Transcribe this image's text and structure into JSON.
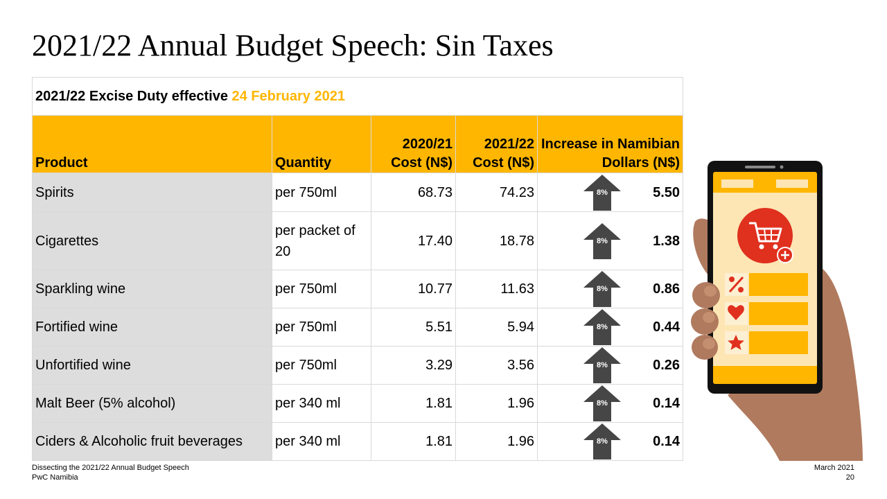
{
  "slide": {
    "title": "2021/22 Annual Budget Speech: Sin Taxes"
  },
  "table": {
    "caption_prefix": "2021/22 Excise Duty effective ",
    "caption_date": "24 February 2021",
    "headers": {
      "product": "Product",
      "quantity": "Quantity",
      "cost_2020_line1": "2020/21",
      "cost_2020_line2": "Cost (N$)",
      "cost_2021_line1": "2021/22",
      "cost_2021_line2": "Cost (N$)",
      "increase_line1": "Increase in Namibian",
      "increase_line2": "Dollars (N$)"
    },
    "rows": [
      {
        "product": "Spirits",
        "quantity": "per 750ml",
        "cost_2020": "68.73",
        "cost_2021": "74.23",
        "pct": "8%",
        "increase": "5.50"
      },
      {
        "product": "Cigarettes",
        "quantity": "per packet of 20",
        "cost_2020": "17.40",
        "cost_2021": "18.78",
        "pct": "8%",
        "increase": "1.38"
      },
      {
        "product": "Sparkling wine",
        "quantity": "per 750ml",
        "cost_2020": "10.77",
        "cost_2021": "11.63",
        "pct": "8%",
        "increase": "0.86"
      },
      {
        "product": "Fortified wine",
        "quantity": "per 750ml",
        "cost_2020": "5.51",
        "cost_2021": "5.94",
        "pct": "8%",
        "increase": "0.44"
      },
      {
        "product": "Unfortified wine",
        "quantity": "per 750ml",
        "cost_2020": "3.29",
        "cost_2021": "3.56",
        "pct": "8%",
        "increase": "0.26"
      },
      {
        "product": "Malt Beer (5% alcohol)",
        "quantity": "per 340 ml",
        "cost_2020": "1.81",
        "cost_2021": "1.96",
        "pct": "8%",
        "increase": "0.14"
      },
      {
        "product": "Ciders & Alcoholic fruit beverages",
        "quantity": "per 340 ml",
        "cost_2020": "1.81",
        "cost_2021": "1.96",
        "pct": "8%",
        "increase": "0.14"
      }
    ]
  },
  "footer": {
    "left_line1": "Dissecting the 2021/22 Annual Budget Speech",
    "left_line2": "PwC Namibia",
    "right_line1": "March 2021",
    "right_line2": "20"
  },
  "colors": {
    "accent": "#ffb600",
    "product_cell": "#dddddd",
    "arrow": "#464646",
    "cart_red": "#e0301e"
  },
  "icons": [
    "up-arrow-icon",
    "shopping-cart-icon",
    "percent-icon",
    "heart-icon",
    "star-icon",
    "plus-icon"
  ]
}
